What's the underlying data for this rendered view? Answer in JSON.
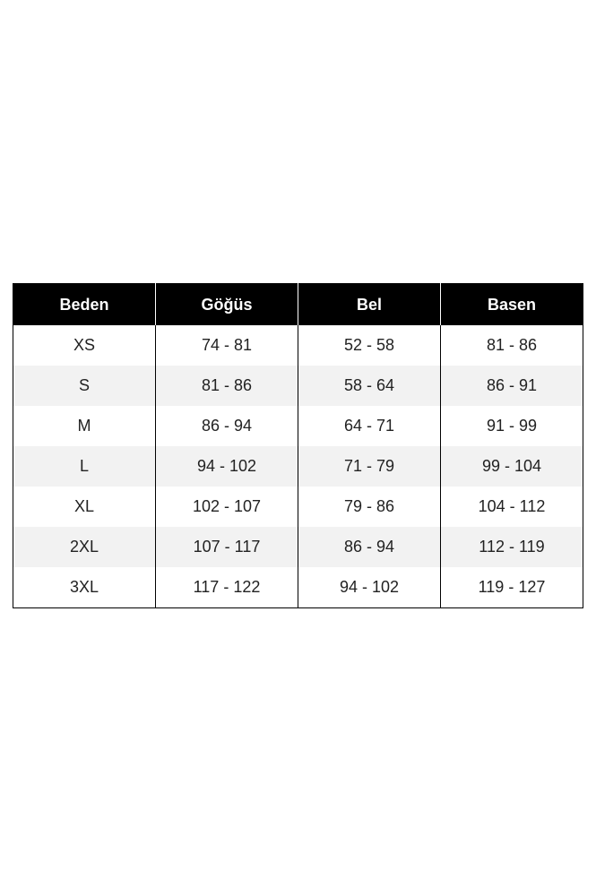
{
  "size_chart": {
    "headers": [
      "Beden",
      "Göğüs",
      "Bel",
      "Basen"
    ],
    "rows": [
      [
        "XS",
        "74 - 81",
        "52 - 58",
        "81 - 86"
      ],
      [
        "S",
        "81 - 86",
        "58 - 64",
        "86 - 91"
      ],
      [
        "M",
        "86 - 94",
        "64 - 71",
        "91 - 99"
      ],
      [
        "L",
        "94 - 102",
        "71 - 79",
        "99 - 104"
      ],
      [
        "XL",
        "102 - 107",
        "79 - 86",
        "104 - 112"
      ],
      [
        "2XL",
        "107 - 117",
        "86 - 94",
        "112 - 119"
      ],
      [
        "3XL",
        "117 - 122",
        "94 - 102",
        "119 - 127"
      ]
    ]
  }
}
